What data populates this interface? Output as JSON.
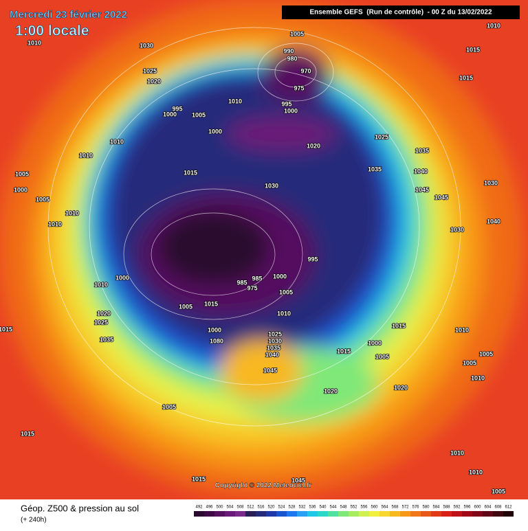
{
  "header": {
    "date": "Mercredi 23 février 2022",
    "time": "1:00 locale",
    "run": "Ensemble GEFS  (Run de contrôle)  - 00 Z du 13/02/2022"
  },
  "footer": {
    "title": "Géop. Z500 & pression au sol",
    "lead": "(+ 240h)",
    "copyright": "Copyright © 2022 Meteociel.fr"
  },
  "legend": {
    "values": [
      492,
      496,
      500,
      504,
      508,
      512,
      516,
      520,
      524,
      528,
      532,
      536,
      540,
      544,
      548,
      552,
      556,
      560,
      564,
      568,
      572,
      576,
      580,
      584,
      588,
      592,
      596,
      600,
      604,
      608,
      612
    ],
    "colors": [
      "#2a0a2e",
      "#3d0a45",
      "#55105e",
      "#6a1a78",
      "#7a2a8a",
      "#2a1f55",
      "#262a7a",
      "#1f3aa8",
      "#1a55d0",
      "#1e78f0",
      "#2aa0f5",
      "#20c8e8",
      "#2ad8c8",
      "#50e0a0",
      "#80e878",
      "#a8ec60",
      "#d0f050",
      "#f0f040",
      "#f8d830",
      "#f8b820",
      "#f89818",
      "#f07818",
      "#e85818",
      "#e03a18",
      "#d82018",
      "#c01018",
      "#a00818",
      "#800818",
      "#600818",
      "#400810",
      "#200408"
    ]
  },
  "isobar_labels": [
    1010,
    1030,
    1005,
    990,
    980,
    970,
    975,
    1025,
    1020,
    1010,
    1015,
    1015,
    995,
    1000,
    1005,
    1010,
    995,
    1000,
    1000,
    1020,
    1025,
    1035,
    1035,
    1040,
    1010,
    1010,
    1015,
    1030,
    1045,
    1045,
    1030,
    1005,
    1000,
    1005,
    1010,
    1010,
    1040,
    1030,
    995,
    1000,
    1010,
    985,
    985,
    1000,
    975,
    1005,
    1005,
    1015,
    1010,
    1015,
    1010,
    1035,
    1000,
    1000,
    1005,
    1015,
    1025,
    1030,
    1035,
    1040,
    1045,
    1080,
    1005,
    1005,
    1010,
    1020,
    1020,
    1005,
    1015,
    1010,
    1010,
    1015,
    1005,
    1015,
    1020,
    1025,
    1045
  ]
}
